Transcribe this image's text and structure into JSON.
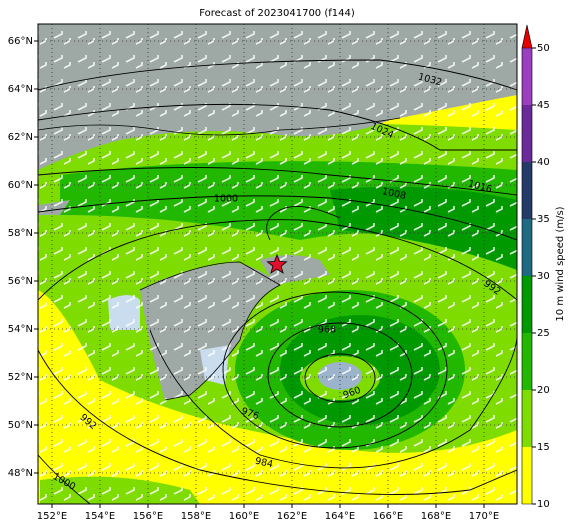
{
  "title": "Forecast of 2023041700 (f144)",
  "lon_labels": [
    "152°E",
    "154°E",
    "156°E",
    "158°E",
    "160°E",
    "162°E",
    "164°E",
    "166°E",
    "168°E",
    "170°E"
  ],
  "lat_labels": [
    "48°N",
    "50°N",
    "52°N",
    "54°N",
    "56°N",
    "58°N",
    "60°N",
    "62°N",
    "64°N",
    "66°N"
  ],
  "colorbar": {
    "label": "10 m wind speed (m/s)",
    "ticks": [
      10,
      15,
      20,
      25,
      30,
      35,
      40,
      45,
      50
    ]
  },
  "isobar_labels": [
    "1032",
    "1024",
    "1008",
    "1016",
    "1000",
    "992",
    "968",
    "960",
    "976",
    "984",
    "1000",
    "992"
  ]
}
